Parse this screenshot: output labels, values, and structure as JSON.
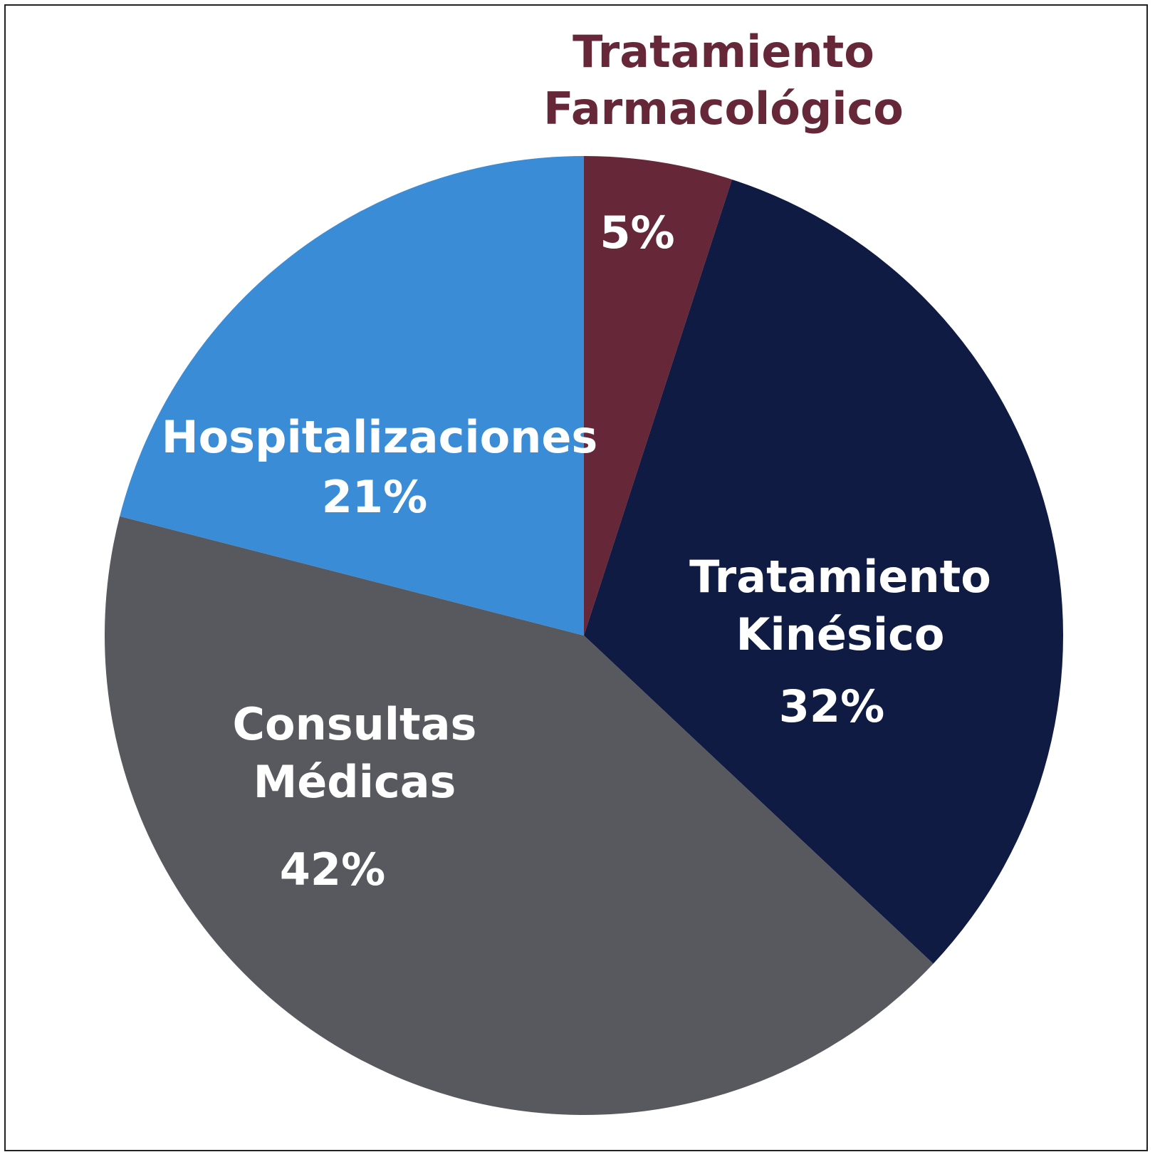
{
  "chart_data": {
    "type": "pie",
    "start": "12 o'clock",
    "direction": "clockwise",
    "slices": [
      {
        "label_lines": [
          "",
          ""
        ],
        "value_label": "5%",
        "value": 5,
        "color": "#662839",
        "text_color": "#ffffff"
      },
      {
        "label_lines": [
          "Tratamiento",
          "Kinésico"
        ],
        "value_label": "32%",
        "value": 32,
        "color": "#0f1b42",
        "text_color": "#ffffff"
      },
      {
        "label_lines": [
          "Consultas",
          "Médicas"
        ],
        "value_label": "42%",
        "value": 42,
        "color": "#58595e",
        "text_color": "#ffffff"
      },
      {
        "label_lines": [
          "Hospitalizaciones",
          ""
        ],
        "value_label": "21%",
        "value": 21,
        "color": "#3a8cd6",
        "text_color": "#ffffff"
      }
    ],
    "outside_label": {
      "lines": [
        "Tratamiento",
        "Farmacológico"
      ],
      "color": "#662839"
    }
  }
}
